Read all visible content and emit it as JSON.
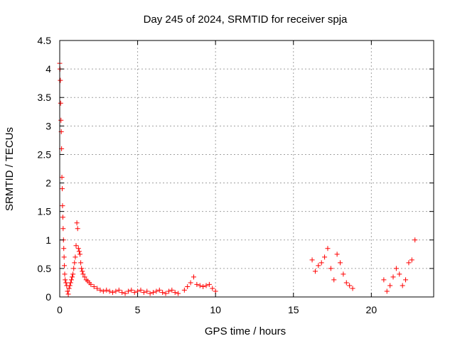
{
  "chart_data": {
    "type": "scatter",
    "title": "Day 245 of 2024, SRMTID for receiver spja",
    "xlabel": "GPS time / hours",
    "ylabel": "SRMTID / TECUs",
    "xlim": [
      0,
      24
    ],
    "ylim": [
      0,
      4.5
    ],
    "xticks": [
      0,
      5,
      10,
      15,
      20
    ],
    "xtick_labels": [
      "0",
      "5",
      "10",
      "15",
      "20"
    ],
    "yticks": [
      0,
      0.5,
      1,
      1.5,
      2,
      2.5,
      3,
      3.5,
      4,
      4.5
    ],
    "ytick_labels": [
      "0",
      "0.5",
      "1",
      "1.5",
      "2",
      "2.5",
      "3",
      "3.5",
      "4",
      "4.5"
    ],
    "grid": true,
    "marker": "+",
    "color": "#ff0000",
    "series": [
      {
        "name": "SRMTID",
        "x": [
          0.0,
          0.02,
          0.04,
          0.06,
          0.08,
          0.1,
          0.12,
          0.14,
          0.16,
          0.18,
          0.2,
          0.22,
          0.24,
          0.26,
          0.28,
          0.3,
          0.32,
          0.35,
          0.4,
          0.45,
          0.5,
          0.55,
          0.6,
          0.65,
          0.7,
          0.75,
          0.8,
          0.85,
          0.9,
          0.95,
          1.0,
          1.05,
          1.1,
          1.15,
          1.2,
          1.25,
          1.3,
          1.35,
          1.4,
          1.45,
          1.5,
          1.6,
          1.7,
          1.8,
          1.9,
          2.0,
          2.2,
          2.4,
          2.6,
          2.8,
          3.0,
          3.2,
          3.4,
          3.6,
          3.8,
          4.0,
          4.2,
          4.4,
          4.6,
          4.8,
          5.0,
          5.2,
          5.4,
          5.6,
          5.8,
          6.0,
          6.2,
          6.4,
          6.6,
          6.8,
          7.0,
          7.2,
          7.4,
          7.6,
          8.0,
          8.2,
          8.4,
          8.6,
          8.8,
          9.0,
          9.2,
          9.4,
          9.6,
          9.8,
          10.0,
          16.2,
          16.4,
          16.6,
          16.8,
          17.0,
          17.2,
          17.4,
          17.6,
          17.8,
          18.0,
          18.2,
          18.4,
          18.6,
          18.8,
          20.8,
          21.0,
          21.2,
          21.4,
          21.6,
          21.8,
          22.0,
          22.2,
          22.4,
          22.6,
          22.8
        ],
        "y": [
          4.1,
          4.0,
          3.8,
          3.4,
          3.1,
          2.9,
          2.6,
          2.1,
          1.9,
          1.6,
          1.4,
          1.2,
          1.0,
          0.85,
          0.7,
          0.55,
          0.4,
          0.3,
          0.25,
          0.2,
          0.1,
          0.05,
          0.15,
          0.2,
          0.25,
          0.3,
          0.35,
          0.4,
          0.5,
          0.6,
          0.7,
          0.9,
          1.3,
          1.2,
          0.85,
          0.8,
          0.75,
          0.6,
          0.5,
          0.45,
          0.4,
          0.35,
          0.3,
          0.28,
          0.25,
          0.22,
          0.18,
          0.15,
          0.12,
          0.1,
          0.12,
          0.1,
          0.08,
          0.1,
          0.12,
          0.08,
          0.06,
          0.1,
          0.12,
          0.08,
          0.1,
          0.12,
          0.08,
          0.1,
          0.06,
          0.08,
          0.1,
          0.12,
          0.08,
          0.06,
          0.1,
          0.12,
          0.08,
          0.06,
          0.12,
          0.18,
          0.25,
          0.35,
          0.22,
          0.2,
          0.18,
          0.2,
          0.22,
          0.15,
          0.1,
          0.65,
          0.45,
          0.55,
          0.6,
          0.7,
          0.85,
          0.5,
          0.3,
          0.75,
          0.6,
          0.4,
          0.25,
          0.2,
          0.15,
          0.3,
          0.1,
          0.2,
          0.35,
          0.5,
          0.4,
          0.2,
          0.3,
          0.6,
          0.65,
          1.0
        ]
      }
    ]
  }
}
